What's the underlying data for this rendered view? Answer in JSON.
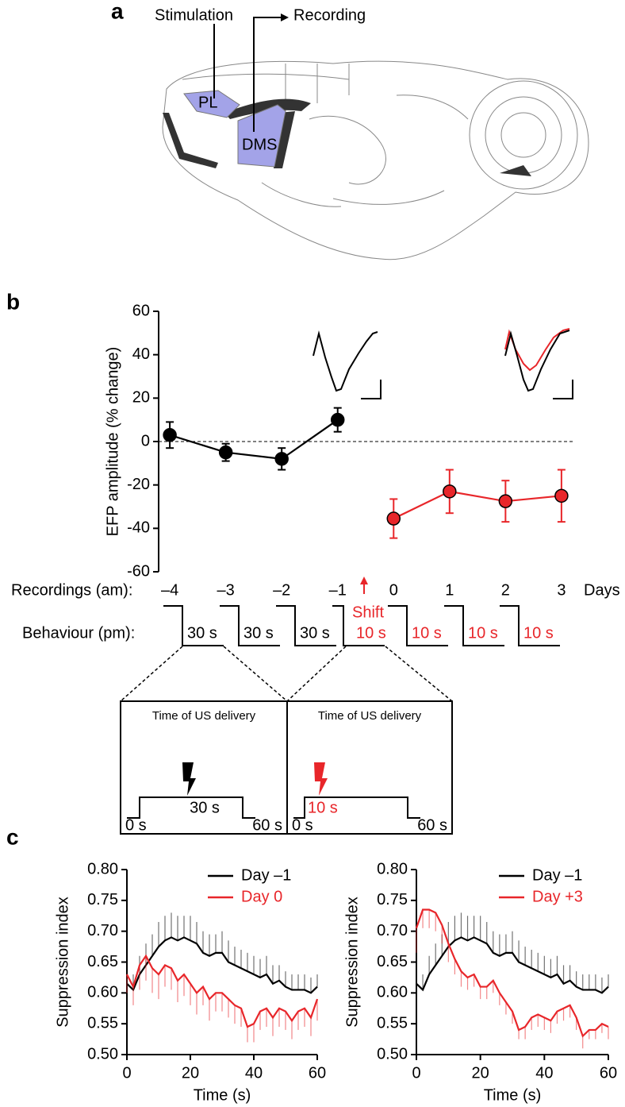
{
  "panel_labels": [
    "a",
    "b",
    "c"
  ],
  "diagram": {
    "stimulation": "Stimulation",
    "recording": "Recording",
    "region_1": "PL",
    "region_2": "DMS"
  },
  "protocol": {
    "row_label": "Behaviour (pm):",
    "shift": "Shift",
    "sessions": [
      {
        "label": "30 s",
        "color": "#000000"
      },
      {
        "label": "30 s",
        "color": "#000000"
      },
      {
        "label": "30 s",
        "color": "#000000"
      },
      {
        "label": "10 s",
        "color": "#e8262a"
      },
      {
        "label": "10 s",
        "color": "#e8262a"
      },
      {
        "label": "10 s",
        "color": "#e8262a"
      },
      {
        "label": "10 s",
        "color": "#e8262a"
      }
    ],
    "insets": [
      {
        "title": "Time of US delivery",
        "duration": "30 s",
        "start": "0 s",
        "end": "60 s",
        "color": "#000000"
      },
      {
        "title": "Time of US delivery",
        "duration": "10 s",
        "start": "0 s",
        "end": "60 s",
        "color": "#e8262a"
      }
    ]
  },
  "chart_data": [
    {
      "type": "line",
      "ylabel": "EFP amplitude (% change)",
      "row_label": "Recordings (am):",
      "xlabel": "Days",
      "xlim": [
        -4.2,
        3.2
      ],
      "xticks": [
        {
          "value": -4,
          "label": "–4"
        },
        {
          "value": -3,
          "label": "–3"
        },
        {
          "value": -2,
          "label": "–2"
        },
        {
          "value": -1,
          "label": "–1"
        },
        0,
        1,
        2,
        3
      ],
      "ylim": [
        -60,
        60
      ],
      "yticks": [
        -60,
        -40,
        -20,
        0,
        20,
        40,
        60
      ],
      "reference_line": 0,
      "markers": true,
      "series": [
        {
          "color": "#000000",
          "x": [
            -4,
            -3,
            -2,
            -1
          ],
          "values": [
            3,
            -5,
            -8,
            10
          ],
          "errors": [
            6,
            4,
            5,
            5.5
          ]
        },
        {
          "color": "#e8262a",
          "x": [
            0,
            1,
            2,
            3
          ],
          "values": [
            -35.5,
            -23,
            -27.5,
            -25
          ],
          "errors": [
            9,
            10,
            9.5,
            12
          ]
        }
      ]
    },
    {
      "type": "line",
      "xlabel": "Time (s)",
      "ylabel": "Suppression index",
      "legend": "upper right",
      "x": [
        0,
        2,
        4,
        6,
        8,
        10,
        12,
        14,
        16,
        18,
        20,
        22,
        24,
        26,
        28,
        30,
        32,
        34,
        36,
        38,
        40,
        42,
        44,
        46,
        48,
        50,
        52,
        54,
        56,
        58,
        60
      ],
      "xlim": [
        0,
        60
      ],
      "xticks": [
        0,
        20,
        40,
        60
      ],
      "ylim": [
        0.5,
        0.8
      ],
      "yticks": [
        {
          "value": 0.5,
          "label": "0.50"
        },
        {
          "value": 0.55,
          "label": "0.55"
        },
        {
          "value": 0.6,
          "label": "0.60"
        },
        {
          "value": 0.65,
          "label": "0.65"
        },
        {
          "value": 0.7,
          "label": "0.70"
        },
        {
          "value": 0.75,
          "label": "0.75"
        },
        {
          "value": 0.8,
          "label": "0.80"
        }
      ],
      "series": [
        {
          "name": "Day –1",
          "color": "#000000",
          "error_direction": "up",
          "values": [
            0.615,
            0.605,
            0.63,
            0.645,
            0.66,
            0.675,
            0.685,
            0.69,
            0.685,
            0.69,
            0.685,
            0.68,
            0.665,
            0.66,
            0.665,
            0.665,
            0.65,
            0.645,
            0.64,
            0.635,
            0.63,
            0.625,
            0.63,
            0.615,
            0.62,
            0.61,
            0.605,
            0.605,
            0.605,
            0.6,
            0.61
          ],
          "errors": [
            0.02,
            0.025,
            0.03,
            0.035,
            0.035,
            0.04,
            0.04,
            0.04,
            0.04,
            0.035,
            0.04,
            0.035,
            0.035,
            0.035,
            0.03,
            0.035,
            0.035,
            0.03,
            0.03,
            0.03,
            0.03,
            0.03,
            0.03,
            0.03,
            0.025,
            0.025,
            0.025,
            0.025,
            0.025,
            0.025,
            0.02
          ]
        },
        {
          "name": "Day 0",
          "color": "#e8262a",
          "error_direction": "down",
          "values": [
            0.63,
            0.61,
            0.645,
            0.66,
            0.64,
            0.63,
            0.645,
            0.64,
            0.62,
            0.63,
            0.615,
            0.6,
            0.61,
            0.59,
            0.6,
            0.6,
            0.59,
            0.58,
            0.575,
            0.545,
            0.55,
            0.57,
            0.575,
            0.56,
            0.575,
            0.57,
            0.555,
            0.57,
            0.575,
            0.56,
            0.59
          ],
          "errors": [
            0.03,
            0.03,
            0.04,
            0.04,
            0.04,
            0.04,
            0.035,
            0.035,
            0.035,
            0.035,
            0.035,
            0.035,
            0.03,
            0.035,
            0.03,
            0.03,
            0.03,
            0.03,
            0.03,
            0.025,
            0.03,
            0.03,
            0.03,
            0.03,
            0.03,
            0.03,
            0.03,
            0.03,
            0.03,
            0.03,
            0.035
          ]
        }
      ]
    },
    {
      "type": "line",
      "xlabel": "Time (s)",
      "ylabel": "Suppression index",
      "legend": "upper right",
      "x": [
        0,
        2,
        4,
        6,
        8,
        10,
        12,
        14,
        16,
        18,
        20,
        22,
        24,
        26,
        28,
        30,
        32,
        34,
        36,
        38,
        40,
        42,
        44,
        46,
        48,
        50,
        52,
        54,
        56,
        58,
        60
      ],
      "xlim": [
        0,
        60
      ],
      "xticks": [
        0,
        20,
        40,
        60
      ],
      "ylim": [
        0.5,
        0.8
      ],
      "yticks": [
        {
          "value": 0.5,
          "label": "0.50"
        },
        {
          "value": 0.55,
          "label": "0.55"
        },
        {
          "value": 0.6,
          "label": "0.60"
        },
        {
          "value": 0.65,
          "label": "0.65"
        },
        {
          "value": 0.7,
          "label": "0.70"
        },
        {
          "value": 0.75,
          "label": "0.75"
        },
        {
          "value": 0.8,
          "label": "0.80"
        }
      ],
      "series": [
        {
          "name": "Day –1",
          "color": "#000000",
          "error_direction": "up",
          "values": [
            0.615,
            0.605,
            0.63,
            0.645,
            0.66,
            0.675,
            0.685,
            0.69,
            0.685,
            0.69,
            0.685,
            0.68,
            0.665,
            0.66,
            0.665,
            0.665,
            0.65,
            0.645,
            0.64,
            0.635,
            0.63,
            0.625,
            0.63,
            0.615,
            0.62,
            0.61,
            0.605,
            0.605,
            0.605,
            0.6,
            0.61
          ],
          "errors": [
            0.02,
            0.025,
            0.03,
            0.035,
            0.035,
            0.04,
            0.04,
            0.04,
            0.04,
            0.035,
            0.04,
            0.035,
            0.035,
            0.035,
            0.03,
            0.035,
            0.035,
            0.03,
            0.03,
            0.03,
            0.03,
            0.03,
            0.03,
            0.03,
            0.025,
            0.025,
            0.025,
            0.025,
            0.025,
            0.025,
            0.02
          ]
        },
        {
          "name": "Day +3",
          "color": "#e8262a",
          "error_direction": "down",
          "values": [
            0.705,
            0.735,
            0.735,
            0.73,
            0.71,
            0.68,
            0.655,
            0.635,
            0.625,
            0.63,
            0.61,
            0.61,
            0.62,
            0.6,
            0.585,
            0.57,
            0.54,
            0.545,
            0.56,
            0.565,
            0.56,
            0.555,
            0.57,
            0.575,
            0.58,
            0.56,
            0.53,
            0.54,
            0.54,
            0.55,
            0.545
          ],
          "errors": [
            0.04,
            0.03,
            0.03,
            0.03,
            0.03,
            0.03,
            0.025,
            0.025,
            0.02,
            0.02,
            0.02,
            0.02,
            0.02,
            0.02,
            0.02,
            0.02,
            0.015,
            0.02,
            0.02,
            0.02,
            0.02,
            0.02,
            0.02,
            0.02,
            0.02,
            0.02,
            0.02,
            0.015,
            0.015,
            0.015,
            0.02
          ]
        }
      ]
    }
  ]
}
